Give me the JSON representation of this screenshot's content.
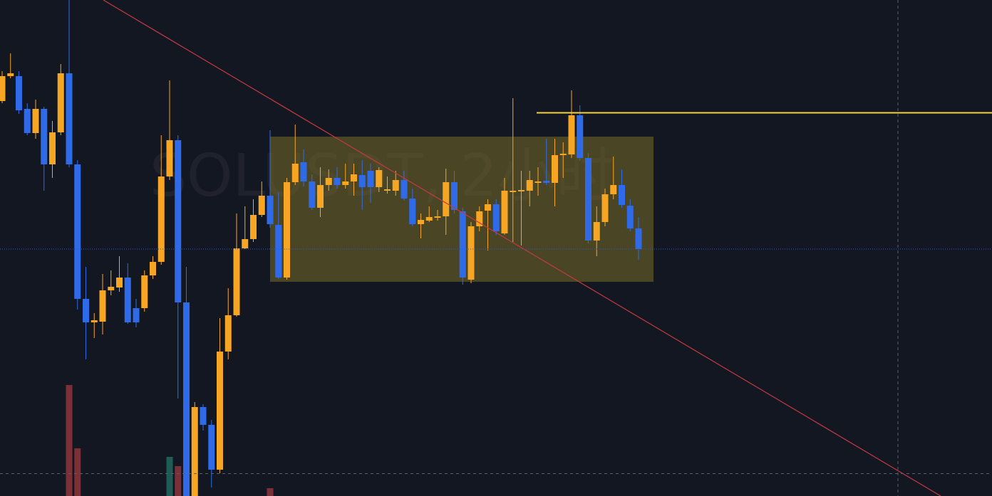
{
  "chart_data": {
    "type": "candlestick",
    "title": "SOLUSDT, 2小时",
    "ylim": [
      0,
      697
    ],
    "up_color": "#f7a623",
    "down_color": "#2f6be8",
    "open": [
      555,
      590,
      590,
      544,
      510,
      544,
      466,
      511,
      594,
      466,
      277,
      244,
      245,
      289,
      293,
      307,
      264,
      264,
      310,
      329,
      449,
      500,
      272,
      0,
      125,
      100,
      37,
      203,
      254,
      348,
      361,
      395,
      422,
      381,
      307,
      441,
      469,
      442,
      405,
      437,
      447,
      437,
      442,
      451,
      457,
      434,
      429,
      429,
      444,
      418,
      382,
      387,
      391,
      393,
      441,
      400,
      304,
      379,
      401,
      410,
      369,
      427,
      428,
      429,
      440,
      443,
      440,
      479,
      480,
      535,
      475,
      359,
      385,
      424,
      437,
      408,
      376
    ],
    "high": [
      597,
      622,
      597,
      552,
      557,
      547,
      527,
      607,
      697,
      472,
      322,
      257,
      312,
      317,
      337,
      327,
      277,
      317,
      337,
      507,
      584,
      507,
      322,
      132,
      129,
      107,
      250,
      292,
      397,
      407,
      417,
      442,
      514,
      427,
      447,
      522,
      487,
      452,
      462,
      459,
      462,
      467,
      467,
      472,
      467,
      462,
      449,
      457,
      457,
      432,
      397,
      407,
      402,
      460,
      457,
      405,
      385,
      407,
      417,
      417,
      447,
      559,
      457,
      457,
      462,
      502,
      502,
      497,
      570,
      549,
      482,
      407,
      432,
      477,
      459,
      417,
      392
    ],
    "low": [
      552,
      587,
      537,
      507,
      502,
      429,
      447,
      507,
      462,
      262,
      192,
      222,
      227,
      282,
      287,
      242,
      237,
      259,
      305,
      325,
      444,
      137,
      0,
      0,
      92,
      12,
      32,
      192,
      252,
      347,
      357,
      392,
      377,
      305,
      304,
      437,
      435,
      402,
      392,
      429,
      432,
      432,
      422,
      402,
      412,
      427,
      425,
      422,
      415,
      379,
      362,
      385,
      387,
      367,
      397,
      297,
      299,
      372,
      345,
      367,
      367,
      357,
      352,
      407,
      422,
      437,
      407,
      447,
      475,
      471,
      355,
      337,
      379,
      417,
      405,
      372,
      332
    ],
    "close": [
      590,
      594,
      542,
      510,
      544,
      466,
      511,
      594,
      466,
      277,
      244,
      247,
      289,
      294,
      307,
      244,
      244,
      310,
      329,
      449,
      500,
      272,
      0,
      125,
      100,
      37,
      203,
      254,
      348,
      361,
      395,
      422,
      382,
      307,
      441,
      467,
      442,
      405,
      437,
      447,
      437,
      442,
      452,
      434,
      434,
      458,
      431,
      444,
      418,
      382,
      388,
      392,
      393,
      441,
      402,
      307,
      379,
      400,
      410,
      372,
      429,
      429,
      430,
      444,
      442,
      440,
      479,
      481,
      535,
      475,
      359,
      385,
      424,
      437,
      409,
      376,
      347
    ],
    "volume": [
      null,
      null,
      null,
      null,
      null,
      null,
      null,
      null,
      156,
      67,
      null,
      null,
      null,
      null,
      null,
      null,
      null,
      null,
      null,
      null,
      55,
      42,
      null,
      null,
      null,
      null,
      null,
      null,
      null,
      null,
      null,
      null,
      11,
      null,
      null,
      null,
      null,
      null,
      null,
      null,
      null,
      null,
      null,
      null,
      null,
      null,
      null,
      null,
      null,
      null,
      null,
      null,
      null,
      null,
      null,
      null,
      null,
      null,
      null,
      null,
      null,
      null,
      null,
      null,
      null,
      null,
      null,
      null,
      null,
      null,
      null,
      null,
      null,
      null,
      null,
      null,
      null
    ],
    "vlim": [
      0,
      697
    ],
    "volume_up_color": "#1e5c55",
    "volume_down_color": "#7b2f36"
  }
}
